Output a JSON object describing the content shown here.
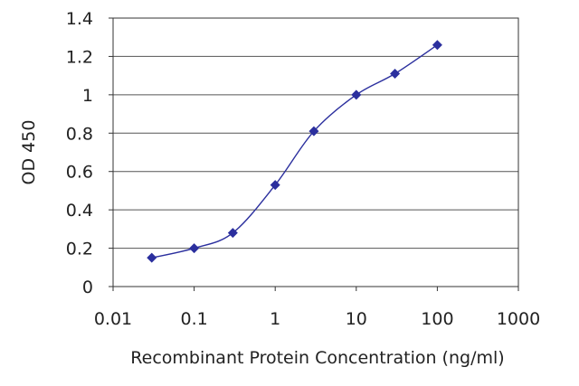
{
  "chart_data": {
    "type": "scatter",
    "title": "",
    "xlabel": "Recombinant Protein Concentration (ng/ml)",
    "ylabel": "OD 450",
    "x_scale": "log",
    "xlim": [
      0.01,
      1000
    ],
    "ylim": [
      0,
      1.4
    ],
    "x_ticks": [
      "0.01",
      "0.1",
      "1",
      "10",
      "100",
      "1000"
    ],
    "y_ticks": [
      "0",
      "0.2",
      "0.4",
      "0.6",
      "0.8",
      "1",
      "1.2",
      "1.4"
    ],
    "grid": "horizontal",
    "legend": "none",
    "series": [
      {
        "x": [
          0.03,
          0.1,
          0.3,
          1,
          3,
          10,
          30,
          100
        ],
        "y": [
          0.15,
          0.2,
          0.28,
          0.53,
          0.81,
          1.0,
          1.11,
          1.26
        ],
        "color": "#2b2f9e",
        "marker": "diamond",
        "line": "smooth"
      }
    ]
  }
}
